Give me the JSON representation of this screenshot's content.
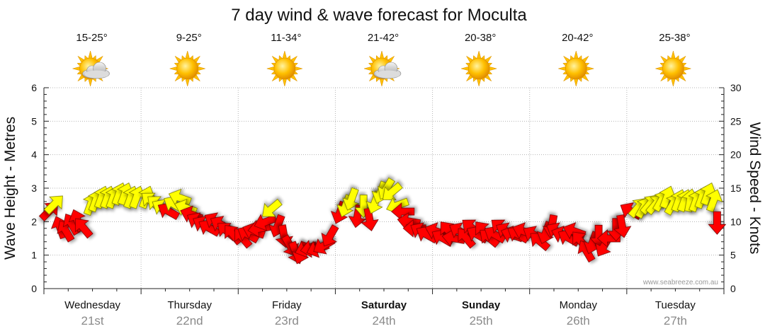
{
  "chart_data": {
    "type": "scatter",
    "title": "7 day wind & wave forecast for Moculta",
    "ylabel_left": "Wave Height - Metres",
    "ylabel_right": "Wind Speed - Knots",
    "ylim_left": [
      0,
      6
    ],
    "ylim_right": [
      0,
      30
    ],
    "yticks_left": [
      "0",
      "1",
      "2",
      "3",
      "4",
      "5",
      "6"
    ],
    "yticks_right": [
      "0",
      "5",
      "10",
      "15",
      "20",
      "25",
      "30"
    ],
    "grid": true,
    "credit": "www.seabreeze.com.au",
    "colors": {
      "light_wind": "#ffff00",
      "strong_wind": "#ff0000",
      "sun": "#ffc000",
      "cloud": "#c8c8c8"
    },
    "days": [
      {
        "name": "Wednesday",
        "date": "21st",
        "temp": "15-25°",
        "weather_icon": "partly-cloudy-icon",
        "bold": false
      },
      {
        "name": "Thursday",
        "date": "22nd",
        "temp": "9-25°",
        "weather_icon": "sunny-icon",
        "bold": false
      },
      {
        "name": "Friday",
        "date": "23rd",
        "temp": "11-34°",
        "weather_icon": "sunny-icon",
        "bold": false
      },
      {
        "name": "Saturday",
        "date": "24th",
        "temp": "21-42°",
        "weather_icon": "partly-cloudy-icon",
        "bold": true
      },
      {
        "name": "Sunday",
        "date": "25th",
        "temp": "20-38°",
        "weather_icon": "sunny-icon",
        "bold": true
      },
      {
        "name": "Monday",
        "date": "26th",
        "temp": "20-42°",
        "weather_icon": "sunny-icon",
        "bold": false
      },
      {
        "name": "Tuesday",
        "date": "27th",
        "temp": "25-38°",
        "weather_icon": "sunny-icon",
        "bold": false
      }
    ],
    "series": [
      {
        "name": "Wind",
        "unit": "knots",
        "points": [
          {
            "t": 0.05,
            "speed": 11.5,
            "dir": 45
          },
          {
            "t": 0.1,
            "speed": 12.5,
            "dir": 45
          },
          {
            "t": 0.17,
            "speed": 9.0,
            "dir": 340
          },
          {
            "t": 0.23,
            "speed": 8.5,
            "dir": 330
          },
          {
            "t": 0.29,
            "speed": 9.5,
            "dir": 330
          },
          {
            "t": 0.35,
            "speed": 10.0,
            "dir": 340
          },
          {
            "t": 0.41,
            "speed": 9.0,
            "dir": 320
          },
          {
            "t": 0.48,
            "speed": 12.5,
            "dir": 20
          },
          {
            "t": 0.53,
            "speed": 13.0,
            "dir": 20
          },
          {
            "t": 0.59,
            "speed": 13.5,
            "dir": 20
          },
          {
            "t": 0.65,
            "speed": 13.5,
            "dir": 20
          },
          {
            "t": 0.71,
            "speed": 13.5,
            "dir": 20
          },
          {
            "t": 0.77,
            "speed": 14.0,
            "dir": 20
          },
          {
            "t": 0.83,
            "speed": 14.0,
            "dir": 20
          },
          {
            "t": 0.89,
            "speed": 13.5,
            "dir": 20
          },
          {
            "t": 0.95,
            "speed": 13.5,
            "dir": 20
          },
          {
            "t": 1.05,
            "speed": 13.5,
            "dir": 20
          },
          {
            "t": 1.11,
            "speed": 13.0,
            "dir": 310
          },
          {
            "t": 1.17,
            "speed": 12.5,
            "dir": 310
          },
          {
            "t": 1.23,
            "speed": 12.0,
            "dir": 300
          },
          {
            "t": 1.29,
            "speed": 11.5,
            "dir": 300
          },
          {
            "t": 1.35,
            "speed": 12.5,
            "dir": 300
          },
          {
            "t": 1.41,
            "speed": 13.5,
            "dir": 290
          },
          {
            "t": 1.47,
            "speed": 12.0,
            "dir": 290
          },
          {
            "t": 1.53,
            "speed": 11.0,
            "dir": 290
          },
          {
            "t": 1.59,
            "speed": 10.0,
            "dir": 300
          },
          {
            "t": 1.65,
            "speed": 9.5,
            "dir": 300
          },
          {
            "t": 1.71,
            "speed": 9.0,
            "dir": 300
          },
          {
            "t": 1.77,
            "speed": 10.0,
            "dir": 300
          },
          {
            "t": 1.83,
            "speed": 9.5,
            "dir": 300
          },
          {
            "t": 1.89,
            "speed": 8.5,
            "dir": 310
          },
          {
            "t": 1.95,
            "speed": 8.0,
            "dir": 320
          },
          {
            "t": 2.05,
            "speed": 7.5,
            "dir": 320
          },
          {
            "t": 2.11,
            "speed": 8.0,
            "dir": 300
          },
          {
            "t": 2.17,
            "speed": 8.5,
            "dir": 290
          },
          {
            "t": 2.23,
            "speed": 9.0,
            "dir": 260
          },
          {
            "t": 2.29,
            "speed": 10.0,
            "dir": 250
          },
          {
            "t": 2.35,
            "speed": 12.0,
            "dir": 230
          },
          {
            "t": 2.41,
            "speed": 9.5,
            "dir": 200
          },
          {
            "t": 2.47,
            "speed": 8.0,
            "dir": 170
          },
          {
            "t": 2.53,
            "speed": 6.5,
            "dir": 150
          },
          {
            "t": 2.59,
            "speed": 5.5,
            "dir": 160
          },
          {
            "t": 2.65,
            "speed": 5.5,
            "dir": 200
          },
          {
            "t": 2.71,
            "speed": 6.0,
            "dir": 250
          },
          {
            "t": 2.77,
            "speed": 6.0,
            "dir": 260
          },
          {
            "t": 2.83,
            "speed": 6.0,
            "dir": 250
          },
          {
            "t": 2.89,
            "speed": 6.5,
            "dir": 240
          },
          {
            "t": 2.95,
            "speed": 8.0,
            "dir": 210
          },
          {
            "t": 3.05,
            "speed": 11.5,
            "dir": 200
          },
          {
            "t": 3.11,
            "speed": 12.5,
            "dir": 200
          },
          {
            "t": 3.17,
            "speed": 13.5,
            "dir": 200
          },
          {
            "t": 3.23,
            "speed": 11.0,
            "dir": 190
          },
          {
            "t": 3.29,
            "speed": 12.5,
            "dir": 180
          },
          {
            "t": 3.35,
            "speed": 10.5,
            "dir": 170
          },
          {
            "t": 3.41,
            "speed": 13.0,
            "dir": 200
          },
          {
            "t": 3.47,
            "speed": 14.5,
            "dir": 200
          },
          {
            "t": 3.53,
            "speed": 15.0,
            "dir": 210
          },
          {
            "t": 3.59,
            "speed": 14.5,
            "dir": 230
          },
          {
            "t": 3.65,
            "speed": 12.5,
            "dir": 250
          },
          {
            "t": 3.71,
            "speed": 11.5,
            "dir": 270
          },
          {
            "t": 3.77,
            "speed": 10.0,
            "dir": 280
          },
          {
            "t": 3.83,
            "speed": 9.0,
            "dir": 270
          },
          {
            "t": 3.89,
            "speed": 8.5,
            "dir": 300
          },
          {
            "t": 3.95,
            "speed": 8.0,
            "dir": 300
          },
          {
            "t": 4.05,
            "speed": 8.5,
            "dir": 290
          },
          {
            "t": 4.11,
            "speed": 7.5,
            "dir": 300
          },
          {
            "t": 4.17,
            "speed": 8.5,
            "dir": 320
          },
          {
            "t": 4.23,
            "speed": 7.5,
            "dir": 280
          },
          {
            "t": 4.29,
            "speed": 8.5,
            "dir": 300
          },
          {
            "t": 4.35,
            "speed": 7.5,
            "dir": 320
          },
          {
            "t": 4.41,
            "speed": 9.0,
            "dir": 310
          },
          {
            "t": 4.47,
            "speed": 8.0,
            "dir": 300
          },
          {
            "t": 4.53,
            "speed": 8.5,
            "dir": 320
          },
          {
            "t": 4.59,
            "speed": 7.5,
            "dir": 310
          },
          {
            "t": 4.65,
            "speed": 8.0,
            "dir": 300
          },
          {
            "t": 4.71,
            "speed": 9.0,
            "dir": 310
          },
          {
            "t": 4.77,
            "speed": 8.5,
            "dir": 300
          },
          {
            "t": 4.83,
            "speed": 8.0,
            "dir": 290
          },
          {
            "t": 4.89,
            "speed": 8.0,
            "dir": 300
          },
          {
            "t": 4.95,
            "speed": 8.5,
            "dir": 290
          },
          {
            "t": 5.05,
            "speed": 8.0,
            "dir": 300
          },
          {
            "t": 5.11,
            "speed": 7.0,
            "dir": 310
          },
          {
            "t": 5.17,
            "speed": 8.5,
            "dir": 200
          },
          {
            "t": 5.23,
            "speed": 9.5,
            "dir": 190
          },
          {
            "t": 5.29,
            "speed": 8.5,
            "dir": 300
          },
          {
            "t": 5.35,
            "speed": 8.0,
            "dir": 290
          },
          {
            "t": 5.41,
            "speed": 7.5,
            "dir": 300
          },
          {
            "t": 5.47,
            "speed": 8.5,
            "dir": 290
          },
          {
            "t": 5.53,
            "speed": 7.0,
            "dir": 320
          },
          {
            "t": 5.59,
            "speed": 5.5,
            "dir": 330
          },
          {
            "t": 5.65,
            "speed": 7.0,
            "dir": 200
          },
          {
            "t": 5.71,
            "speed": 8.0,
            "dir": 180
          },
          {
            "t": 5.77,
            "speed": 6.5,
            "dir": 210
          },
          {
            "t": 5.83,
            "speed": 7.5,
            "dir": 270
          },
          {
            "t": 5.89,
            "speed": 9.0,
            "dir": 180
          },
          {
            "t": 5.95,
            "speed": 9.5,
            "dir": 170
          },
          {
            "t": 6.05,
            "speed": 11.5,
            "dir": 300
          },
          {
            "t": 6.11,
            "speed": 12.0,
            "dir": 40
          },
          {
            "t": 6.17,
            "speed": 12.0,
            "dir": 30
          },
          {
            "t": 6.23,
            "speed": 12.5,
            "dir": 40
          },
          {
            "t": 6.29,
            "speed": 12.5,
            "dir": 40
          },
          {
            "t": 6.35,
            "speed": 13.0,
            "dir": 30
          },
          {
            "t": 6.41,
            "speed": 13.5,
            "dir": 20
          },
          {
            "t": 6.47,
            "speed": 12.5,
            "dir": 30
          },
          {
            "t": 6.53,
            "speed": 13.0,
            "dir": 20
          },
          {
            "t": 6.59,
            "speed": 13.0,
            "dir": 20
          },
          {
            "t": 6.65,
            "speed": 13.0,
            "dir": 10
          },
          {
            "t": 6.71,
            "speed": 13.0,
            "dir": 20
          },
          {
            "t": 6.77,
            "speed": 13.5,
            "dir": 20
          },
          {
            "t": 6.83,
            "speed": 14.0,
            "dir": 20
          },
          {
            "t": 6.89,
            "speed": 13.0,
            "dir": 20
          },
          {
            "t": 6.93,
            "speed": 10.0,
            "dir": 180
          }
        ]
      }
    ]
  }
}
